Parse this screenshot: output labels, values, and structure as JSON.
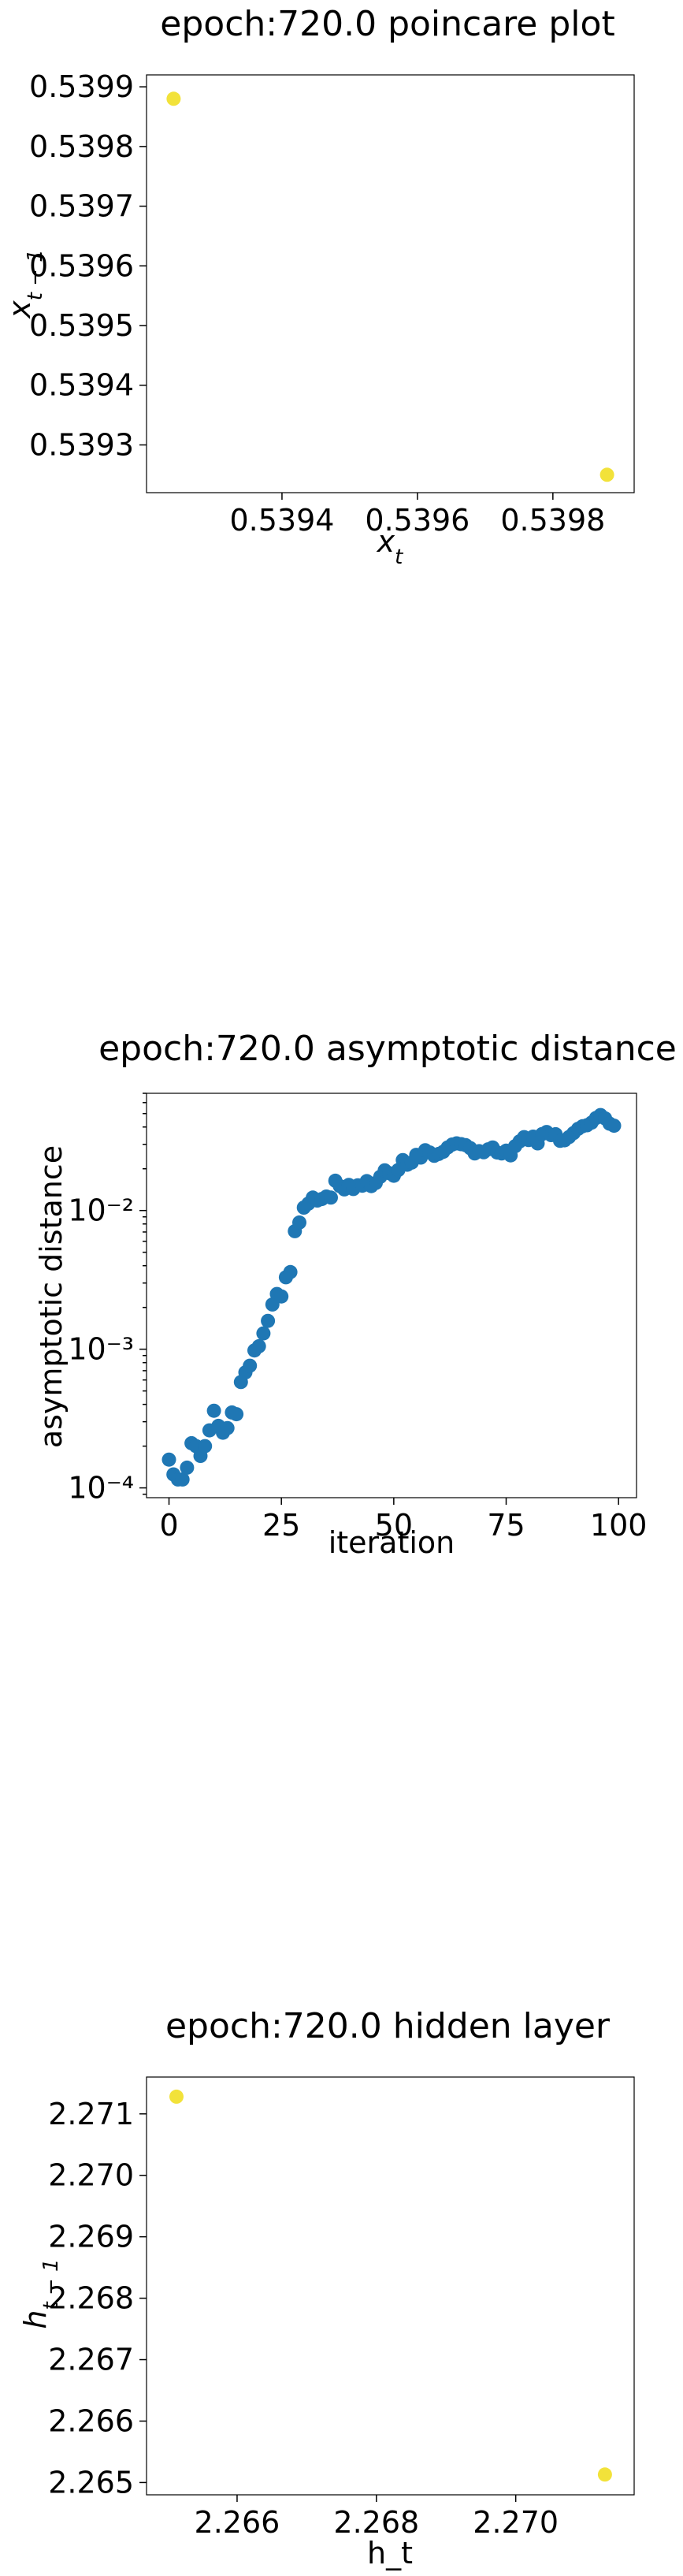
{
  "chart_data": [
    {
      "type": "scatter",
      "title": "epoch:720.0 poincare plot",
      "xlabel": "x_t",
      "ylabel": "x_{t-1}",
      "x_ticks": [
        0.5394,
        0.5396,
        0.5398
      ],
      "x_tick_labels": [
        "0.5394",
        "0.5396",
        "0.5398"
      ],
      "y_ticks": [
        0.5393,
        0.5394,
        0.5395,
        0.5396,
        0.5397,
        0.5398,
        0.5399
      ],
      "y_tick_labels": [
        "0.5393",
        "0.5394",
        "0.5395",
        "0.5396",
        "0.5397",
        "0.5398",
        "0.5399"
      ],
      "xlim": [
        0.5392,
        0.53992
      ],
      "ylim": [
        0.53922,
        0.53992
      ],
      "points": [
        {
          "x": 0.53924,
          "y": 0.53988
        },
        {
          "x": 0.53988,
          "y": 0.53925
        }
      ],
      "color": "#f2e23a",
      "grid": false
    },
    {
      "type": "scatter",
      "title": "epoch:720.0 asymptotic distance",
      "xlabel": "iteration",
      "ylabel": "asymptotic distance",
      "yscale": "log",
      "x_ticks": [
        0,
        25,
        50,
        75,
        100
      ],
      "x_tick_labels": [
        "0",
        "25",
        "50",
        "75",
        "100"
      ],
      "y_ticks": [
        0.0001,
        0.001,
        0.01
      ],
      "y_tick_labels": [
        "10⁻⁴",
        "10⁻³",
        "10⁻²"
      ],
      "xlim": [
        -5,
        104
      ],
      "ylim": [
        8.5e-05,
        0.07
      ],
      "x": [
        0,
        1,
        2,
        3,
        4,
        5,
        6,
        7,
        8,
        9,
        10,
        11,
        12,
        13,
        14,
        15,
        16,
        17,
        18,
        19,
        20,
        21,
        22,
        23,
        24,
        25,
        26,
        27,
        28,
        29,
        30,
        31,
        32,
        33,
        34,
        35,
        36,
        37,
        38,
        39,
        40,
        41,
        42,
        43,
        44,
        45,
        46,
        47,
        48,
        49,
        50,
        51,
        52,
        53,
        54,
        55,
        56,
        57,
        58,
        59,
        60,
        61,
        62,
        63,
        64,
        65,
        66,
        67,
        68,
        69,
        70,
        71,
        72,
        73,
        74,
        75,
        76,
        77,
        78,
        79,
        80,
        81,
        82,
        83,
        84,
        85,
        86,
        87,
        88,
        89,
        90,
        91,
        92,
        93,
        94,
        95,
        96,
        97,
        98,
        99
      ],
      "y": [
        0.00016,
        0.000125,
        0.000115,
        0.000115,
        0.00014,
        0.00021,
        0.0002,
        0.00017,
        0.0002,
        0.00026,
        0.00036,
        0.00028,
        0.00025,
        0.00027,
        0.00035,
        0.00034,
        0.00058,
        0.00068,
        0.00076,
        0.00098,
        0.00105,
        0.0013,
        0.0016,
        0.0021,
        0.0025,
        0.0024,
        0.0033,
        0.0036,
        0.0071,
        0.0082,
        0.0105,
        0.0112,
        0.0124,
        0.0118,
        0.0121,
        0.0126,
        0.0124,
        0.0164,
        0.015,
        0.0142,
        0.0153,
        0.0143,
        0.0152,
        0.0151,
        0.0163,
        0.015,
        0.0158,
        0.0175,
        0.0195,
        0.0186,
        0.0178,
        0.0196,
        0.0231,
        0.0214,
        0.0222,
        0.0252,
        0.0241,
        0.0272,
        0.0262,
        0.0248,
        0.0256,
        0.0265,
        0.0285,
        0.0299,
        0.0305,
        0.0301,
        0.0296,
        0.0282,
        0.0258,
        0.0268,
        0.0263,
        0.0276,
        0.0285,
        0.0262,
        0.0258,
        0.027,
        0.025,
        0.0291,
        0.0315,
        0.0338,
        0.0322,
        0.0341,
        0.0305,
        0.0356,
        0.0368,
        0.035,
        0.0355,
        0.0318,
        0.0321,
        0.0339,
        0.0362,
        0.0388,
        0.0405,
        0.0412,
        0.043,
        0.0465,
        0.0488,
        0.0462,
        0.0423,
        0.0409
      ],
      "color": "#1f77b4",
      "grid": false
    },
    {
      "type": "scatter",
      "title": "epoch:720.0 hidden layer",
      "xlabel": "h_t",
      "ylabel": "h_{t-1}",
      "x_ticks": [
        2.266,
        2.268,
        2.27
      ],
      "x_tick_labels": [
        "2.266",
        "2.268",
        "2.270"
      ],
      "y_ticks": [
        2.265,
        2.266,
        2.267,
        2.268,
        2.269,
        2.27,
        2.271
      ],
      "y_tick_labels": [
        "2.265",
        "2.266",
        "2.267",
        "2.268",
        "2.269",
        "2.270",
        "2.271"
      ],
      "xlim": [
        2.2647,
        2.2717
      ],
      "ylim": [
        2.2648,
        2.2716
      ],
      "points": [
        {
          "x": 2.26513,
          "y": 2.27128
        },
        {
          "x": 2.27128,
          "y": 2.26513
        }
      ],
      "color": "#f2e23a",
      "grid": false
    }
  ]
}
